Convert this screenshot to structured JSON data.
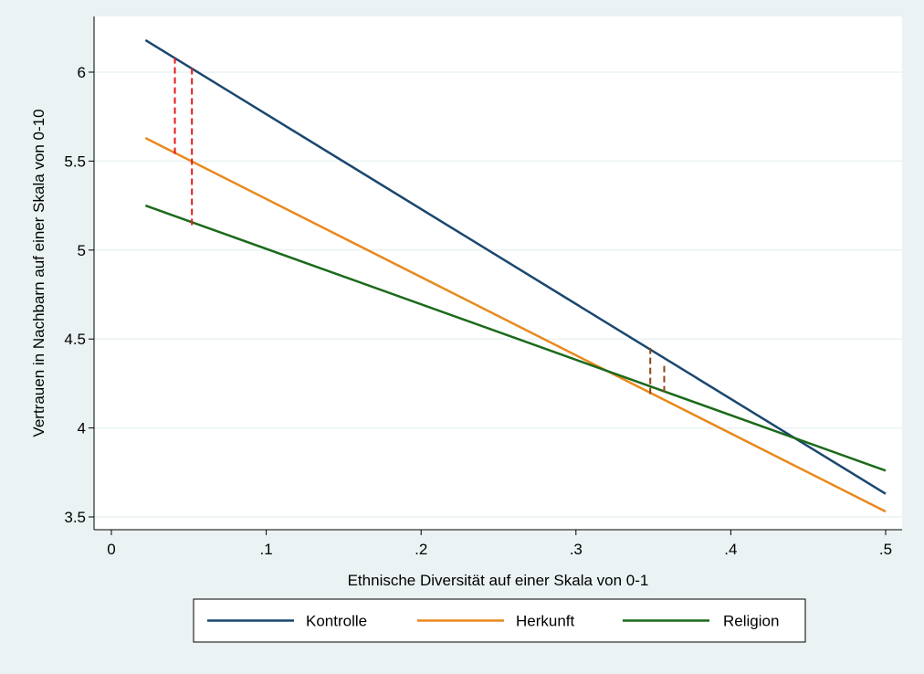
{
  "chart_data": {
    "type": "line",
    "xlabel": "Ethnische Diversität auf einer Skala von 0-1",
    "ylabel": "Vertrauen in Nachbarn auf einer Skala von 0-10",
    "xlim": [
      0,
      0.51
    ],
    "ylim": [
      3.45,
      6.25
    ],
    "x_ticks": [
      {
        "value": 0,
        "label": "0"
      },
      {
        "value": 0.1,
        "label": ".1"
      },
      {
        "value": 0.2,
        "label": ".2"
      },
      {
        "value": 0.3,
        "label": ".3"
      },
      {
        "value": 0.4,
        "label": ".4"
      },
      {
        "value": 0.5,
        "label": ".5"
      }
    ],
    "y_ticks": [
      {
        "value": 3.5,
        "label": "3.5"
      },
      {
        "value": 4,
        "label": "4"
      },
      {
        "value": 4.5,
        "label": "4.5"
      },
      {
        "value": 5,
        "label": "5"
      },
      {
        "value": 5.5,
        "label": "5.5"
      },
      {
        "value": 6,
        "label": "6"
      }
    ],
    "grid": "horizontal",
    "legend_position": "bottom",
    "series": [
      {
        "name": "Kontrolle",
        "color": "#1a476f",
        "x": [
          0.022,
          0.5
        ],
        "y": [
          6.18,
          3.63
        ]
      },
      {
        "name": "Herkunft",
        "color": "#e8891d",
        "x": [
          0.022,
          0.5
        ],
        "y": [
          5.63,
          3.53
        ]
      },
      {
        "name": "Religion",
        "color": "#1b6a1b",
        "x": [
          0.022,
          0.5
        ],
        "y": [
          5.25,
          3.76
        ]
      }
    ],
    "annotations": [
      {
        "type": "dashed-line",
        "color": "#e31a1c",
        "x": 0.041,
        "y1": 5.54,
        "y2": 6.08
      },
      {
        "type": "dashed-line",
        "color": "#e31a1c",
        "x": 0.052,
        "y1": 5.14,
        "y2": 6.03
      },
      {
        "type": "dashed-line",
        "color": "#8b4513",
        "x": 0.348,
        "y1": 4.19,
        "y2": 4.45
      },
      {
        "type": "dashed-line",
        "color": "#8b4513",
        "x": 0.357,
        "y1": 4.2,
        "y2": 4.36
      }
    ]
  }
}
